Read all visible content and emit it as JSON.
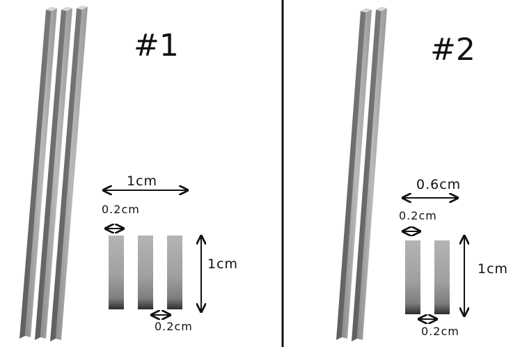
{
  "panel_1": {
    "title": "#1",
    "total_width_label": "1cm",
    "bar_width_label": "0.2cm",
    "height_label": "1cm",
    "gap_label": "0.2cm"
  },
  "panel_2": {
    "title": "#2",
    "total_width_label": "0.6cm",
    "bar_width_label": "0.2cm",
    "height_label": "1cm",
    "gap_label": "0.2cm"
  }
}
